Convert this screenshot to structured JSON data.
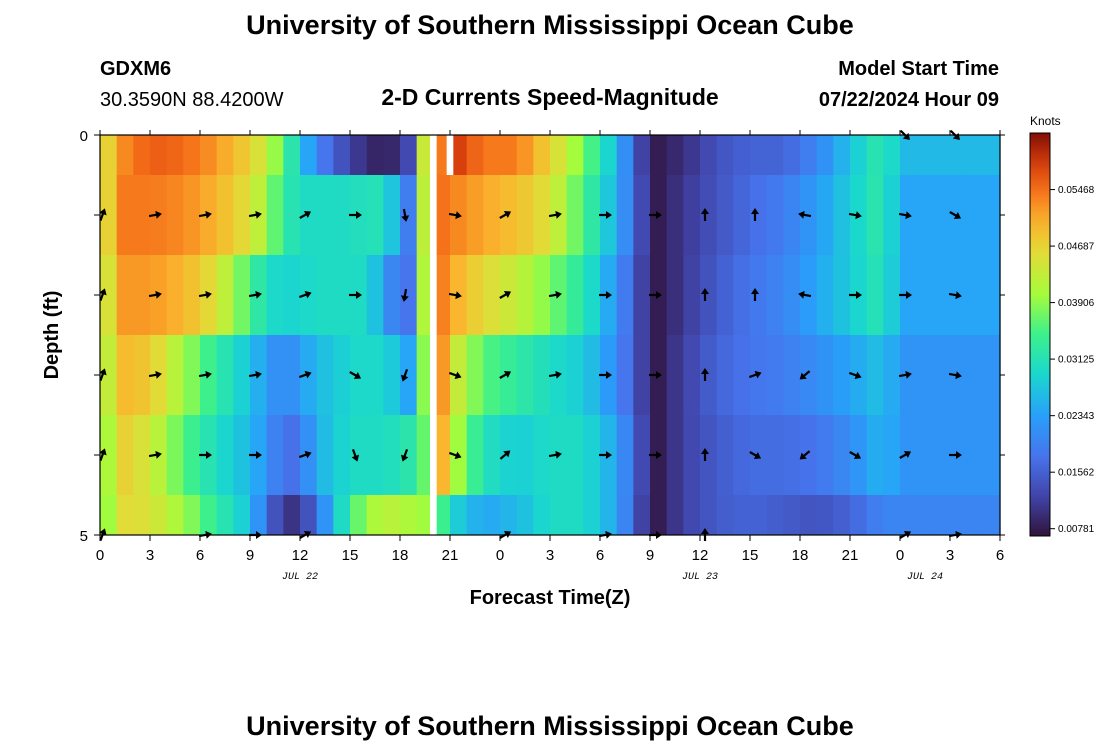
{
  "header": {
    "title": "University of Southern Mississippi Ocean Cube",
    "station_id": "GDXM6",
    "coords": "30.3590N  88.4200W",
    "plot_title": "2-D Currents Speed-Magnitude",
    "model_start_label": "Model Start Time",
    "model_start_value": "07/22/2024 Hour 09"
  },
  "footer": {
    "title": "University of Southern Mississippi Ocean Cube"
  },
  "chart_data": {
    "type": "heatmap",
    "xlabel": "Forecast Time(Z)",
    "ylabel": "Depth (ft)",
    "x_ticks": [
      "0",
      "3",
      "6",
      "9",
      "12",
      "15",
      "18",
      "21",
      "0",
      "3",
      "6",
      "9",
      "12",
      "15",
      "18",
      "21",
      "0",
      "3",
      "6"
    ],
    "date_labels": [
      {
        "label": "JUL 22",
        "tick_index": 4
      },
      {
        "label": "JUL 23",
        "tick_index": 12
      },
      {
        "label": "JUL 24",
        "tick_index": 16.5
      }
    ],
    "y_range": [
      0,
      5
    ],
    "y_tick_labels": [
      "0",
      "5"
    ],
    "colorbar": {
      "title": "Knots",
      "range": [
        0.0068,
        0.0625
      ],
      "tick_values": [
        0.05468,
        0.04687,
        0.03906,
        0.03125,
        0.02343,
        0.01562,
        0.00781
      ],
      "tick_labels": [
        "0.05468",
        "0.04687",
        "0.03906",
        "0.03125",
        "0.02343",
        "0.01562",
        "0.00781"
      ]
    },
    "gap_hours": [
      [
        19.8,
        20.2
      ]
    ],
    "white_marker_hours": [
      20.8,
      21.2
    ],
    "columns_anchor_hours": [
      0,
      1,
      3,
      5,
      7,
      9,
      10,
      11,
      12,
      13,
      15,
      16,
      17,
      17.8,
      18.5,
      19.2,
      19.7,
      20.2,
      20.8,
      21.5,
      23,
      25,
      27,
      29,
      31,
      32.5,
      33.5,
      35,
      37,
      39,
      41,
      43,
      45,
      47,
      48
    ],
    "band_depths": [
      "0-0.5",
      "0.5-1.5",
      "1.5-2.5",
      "2.5-3.5",
      "3.5-4.5",
      "4.5-5"
    ],
    "band_speeds": [
      [
        0.042,
        0.052,
        0.056,
        0.055,
        0.052,
        0.047,
        0.043,
        0.036,
        0.028,
        0.02,
        0.012,
        0.01,
        0.008,
        0.01,
        0.013,
        0.049,
        0.04,
        0.05,
        0.058,
        0.058,
        0.054,
        0.054,
        0.047,
        0.038,
        0.026,
        0.012,
        0.008,
        0.01,
        0.014,
        0.016,
        0.016,
        0.02,
        0.027,
        0.033,
        0.026
      ],
      [
        0.04,
        0.054,
        0.054,
        0.053,
        0.05,
        0.045,
        0.04,
        0.033,
        0.03,
        0.03,
        0.03,
        0.031,
        0.031,
        0.025,
        0.019,
        0.046,
        0.04,
        0.052,
        0.057,
        0.053,
        0.051,
        0.049,
        0.045,
        0.035,
        0.025,
        0.013,
        0.008,
        0.011,
        0.014,
        0.017,
        0.019,
        0.023,
        0.028,
        0.033,
        0.024
      ],
      [
        0.038,
        0.052,
        0.052,
        0.05,
        0.045,
        0.035,
        0.03,
        0.029,
        0.029,
        0.03,
        0.03,
        0.03,
        0.024,
        0.018,
        0.018,
        0.043,
        0.04,
        0.052,
        0.055,
        0.05,
        0.046,
        0.043,
        0.038,
        0.032,
        0.022,
        0.012,
        0.008,
        0.011,
        0.015,
        0.018,
        0.02,
        0.024,
        0.028,
        0.032,
        0.024
      ],
      [
        0.036,
        0.05,
        0.048,
        0.04,
        0.033,
        0.027,
        0.023,
        0.02,
        0.023,
        0.026,
        0.029,
        0.03,
        0.029,
        0.027,
        0.024,
        0.04,
        0.038,
        0.052,
        0.052,
        0.043,
        0.036,
        0.033,
        0.03,
        0.028,
        0.021,
        0.012,
        0.008,
        0.012,
        0.016,
        0.018,
        0.019,
        0.021,
        0.024,
        0.027,
        0.022
      ],
      [
        0.034,
        0.048,
        0.044,
        0.036,
        0.03,
        0.026,
        0.022,
        0.017,
        0.018,
        0.025,
        0.03,
        0.03,
        0.03,
        0.031,
        0.032,
        0.038,
        0.036,
        0.05,
        0.05,
        0.04,
        0.031,
        0.028,
        0.03,
        0.03,
        0.024,
        0.013,
        0.008,
        0.012,
        0.015,
        0.017,
        0.017,
        0.018,
        0.021,
        0.026,
        0.022
      ],
      [
        0.034,
        0.046,
        0.045,
        0.04,
        0.033,
        0.027,
        0.017,
        0.011,
        0.01,
        0.018,
        0.034,
        0.04,
        0.042,
        0.042,
        0.041,
        0.04,
        0.04,
        0.036,
        0.033,
        0.028,
        0.024,
        0.026,
        0.03,
        0.03,
        0.024,
        0.012,
        0.008,
        0.012,
        0.015,
        0.016,
        0.015,
        0.014,
        0.016,
        0.02,
        0.02
      ]
    ],
    "vector_rows": [
      {
        "depth": 0,
        "angles": [
          null,
          null,
          null,
          null,
          null,
          null,
          null,
          null,
          null,
          null,
          null,
          null,
          null,
          null,
          null,
          null,
          45,
          45
        ]
      },
      {
        "depth": 1,
        "angles": [
          -70,
          -10,
          -10,
          -10,
          -30,
          0,
          80,
          10,
          -30,
          -10,
          0,
          0,
          -90,
          -90,
          190,
          10,
          10,
          30
        ]
      },
      {
        "depth": 2,
        "angles": [
          -70,
          -10,
          -10,
          -10,
          -20,
          0,
          100,
          10,
          -30,
          -10,
          0,
          0,
          -90,
          -90,
          190,
          0,
          0,
          10
        ]
      },
      {
        "depth": 3,
        "angles": [
          -70,
          -10,
          -10,
          -10,
          -20,
          30,
          110,
          20,
          -30,
          -10,
          0,
          0,
          -90,
          -20,
          140,
          20,
          -10,
          10
        ]
      },
      {
        "depth": 4,
        "angles": [
          -70,
          -10,
          0,
          0,
          -20,
          70,
          110,
          20,
          -40,
          -10,
          0,
          0,
          -90,
          30,
          140,
          30,
          -30,
          0
        ]
      },
      {
        "depth": 5,
        "angles": [
          -70,
          null,
          -10,
          0,
          -30,
          null,
          null,
          null,
          -30,
          null,
          -10,
          0,
          -90,
          null,
          null,
          null,
          -30,
          -10
        ]
      }
    ]
  }
}
